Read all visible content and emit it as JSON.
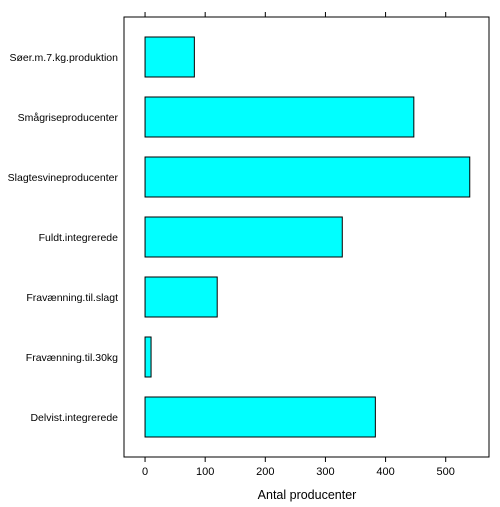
{
  "chart_data": {
    "type": "bar",
    "orientation": "horizontal",
    "categories": [
      "Søer.m.7.kg.produktion",
      "Smågriseproducenter",
      "Slagtesvineproducenter",
      "Fuldt.integrerede",
      "Fravænning.til.slagt",
      "Fravænning.til.30kg",
      "Delvist.integrerede"
    ],
    "values": [
      82,
      447,
      540,
      328,
      120,
      10,
      383
    ],
    "xlabel": "Antal producenter",
    "ylabel": "",
    "title": "",
    "xlim": [
      -35,
      572
    ],
    "xticks": [
      0,
      100,
      200,
      300,
      400,
      500
    ],
    "grid": false,
    "legend": "none",
    "colors": {
      "bar_fill": "#00FFFF",
      "bar_stroke": "#000000",
      "frame": "#000000"
    }
  }
}
